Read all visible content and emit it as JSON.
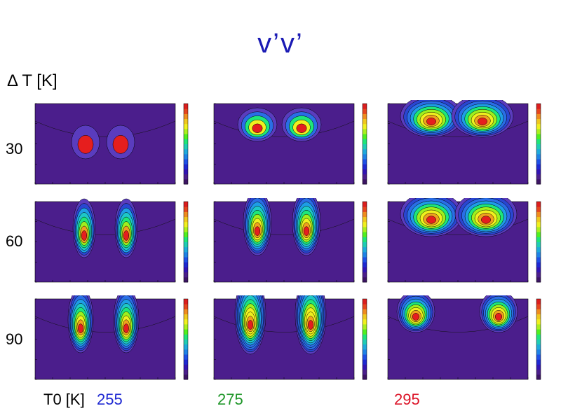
{
  "header": {
    "title": "v’v’",
    "dt_label": "Δ T [K]"
  },
  "rows": [
    "30",
    "60",
    "90"
  ],
  "columns": [
    {
      "label": "255",
      "color": "#1e28d2"
    },
    {
      "label": "275",
      "color": "#1e9628"
    },
    {
      "label": "295",
      "color": "#dc1428"
    }
  ],
  "t0_label": "T0 [K]",
  "colors": {
    "background_fill": "#4b1e8c",
    "low": "#4b1e8c",
    "mid": "#1e32d2",
    "high": "#dc1e1e"
  },
  "chart_data": {
    "type": "heatmap",
    "title": "v’v’",
    "row_axis_label": "Δ T [K]",
    "column_axis_label": "T0 [K]",
    "rows": [
      30,
      60,
      90
    ],
    "columns": [
      255,
      275,
      295
    ],
    "colorbar": "rainbow (purple-blue-green-yellow-red)",
    "grid": [
      [
        "weak mid-level lobes",
        "upper-level jets",
        "strong upper-level jets"
      ],
      [
        "mid-level jets",
        "strong mid/upper jets",
        "upper-level jets"
      ],
      [
        "strong mid/upper jets",
        "very strong upper jets",
        "upper-level jets"
      ]
    ]
  }
}
